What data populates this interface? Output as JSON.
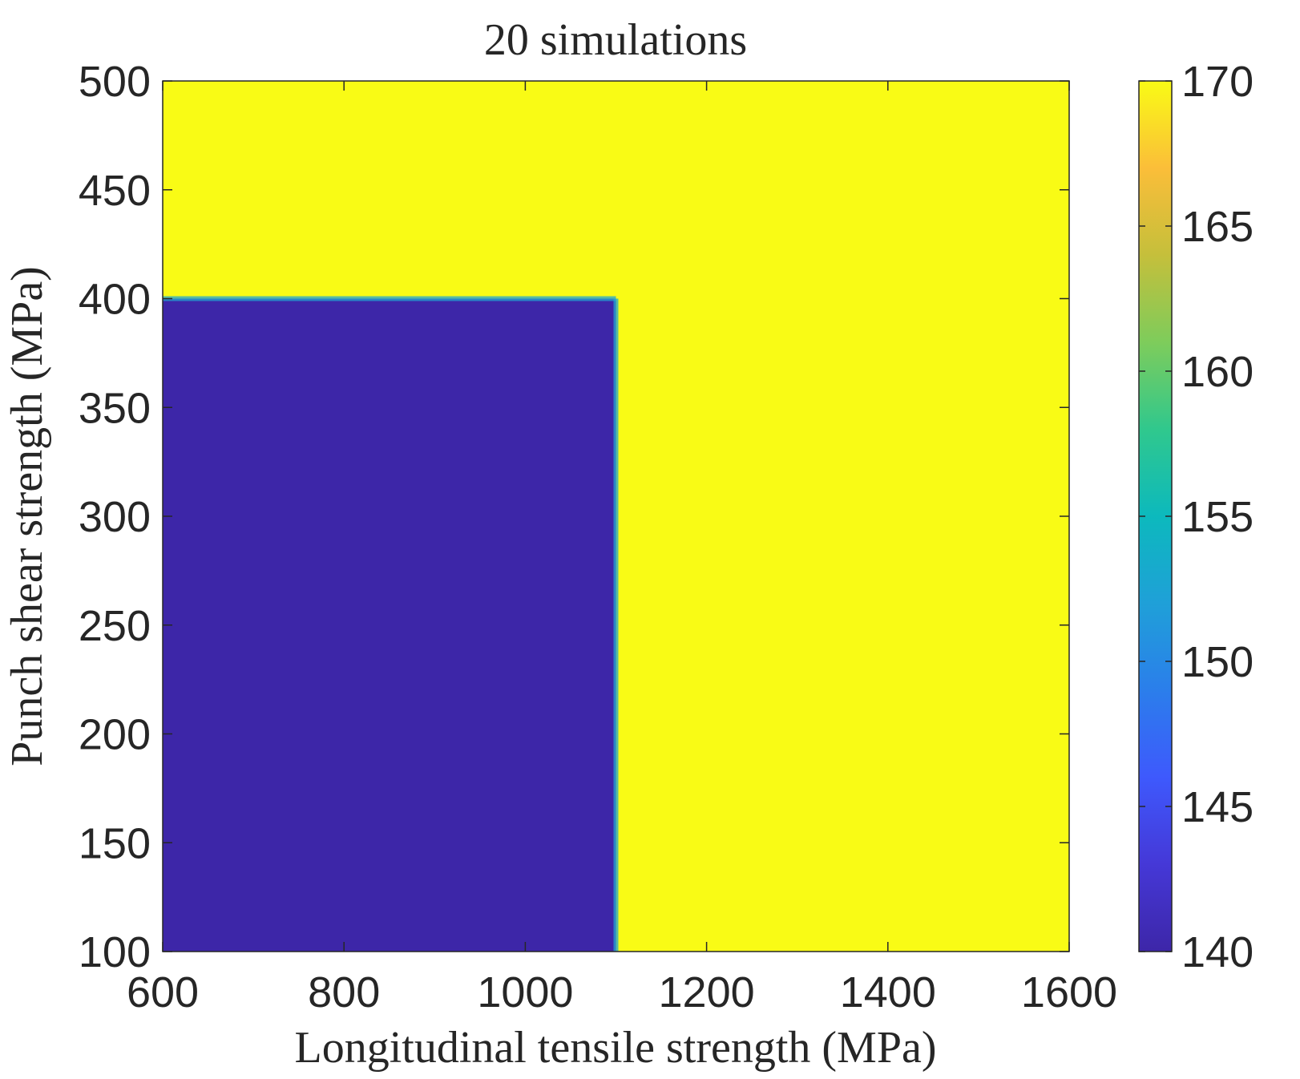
{
  "chart_data": {
    "type": "heatmap",
    "title": "20 simulations",
    "xlabel": "Longitudinal tensile strength (MPa)",
    "ylabel": "Punch shear strength (MPa)",
    "xlim": [
      600,
      1600
    ],
    "ylim": [
      100,
      500
    ],
    "x_ticks": [
      600,
      800,
      1000,
      1200,
      1400,
      1600
    ],
    "y_ticks": [
      100,
      150,
      200,
      250,
      300,
      350,
      400,
      450,
      500
    ],
    "grid": false,
    "regions": [
      {
        "x_range": [
          600,
          1600
        ],
        "y_range": [
          100,
          500
        ],
        "value": 170
      },
      {
        "x_range": [
          600,
          1100
        ],
        "y_range": [
          100,
          400
        ],
        "value": 140
      }
    ],
    "colorbar": {
      "limits": [
        140,
        170
      ],
      "ticks": [
        140,
        145,
        150,
        155,
        160,
        165,
        170
      ],
      "colormap": "parula",
      "low_color": "#3d26a8",
      "high_color": "#f9fb15"
    }
  }
}
